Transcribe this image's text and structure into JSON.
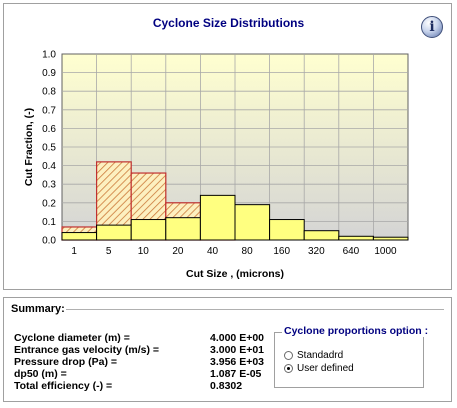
{
  "chart_data": {
    "type": "bar",
    "title": "Cyclone Size Distributions",
    "xlabel": "Cut Size , (microns)",
    "ylabel": "Cut Fraction,  (-)",
    "ylim": [
      0,
      1.0
    ],
    "yticks": [
      "0.0",
      "0.1",
      "0.2",
      "0.3",
      "0.4",
      "0.5",
      "0.6",
      "0.7",
      "0.8",
      "0.9",
      "1.0"
    ],
    "x_tick_labels": [
      "1",
      "5",
      "10",
      "20",
      "40",
      "80",
      "160",
      "320",
      "640",
      "1000"
    ],
    "grid": true,
    "legend": "none",
    "series": [
      {
        "style": "hatched",
        "bins": [
          [
            1,
            5
          ],
          [
            5,
            10
          ],
          [
            10,
            20
          ],
          [
            20,
            40
          ],
          [
            40,
            80
          ]
        ],
        "values": [
          0.07,
          0.42,
          0.36,
          0.2,
          0.03
        ]
      },
      {
        "style": "solid",
        "bins": [
          [
            1,
            5
          ],
          [
            5,
            10
          ],
          [
            10,
            20
          ],
          [
            20,
            40
          ],
          [
            40,
            80
          ],
          [
            80,
            160
          ],
          [
            160,
            320
          ],
          [
            320,
            640
          ],
          [
            640,
            1000
          ],
          [
            1000,
            1400
          ]
        ],
        "values": [
          0.04,
          0.08,
          0.11,
          0.12,
          0.24,
          0.19,
          0.11,
          0.05,
          0.02,
          0.015
        ]
      }
    ]
  },
  "colors": {
    "plot_top": "#ffffd0",
    "plot_bottom": "#d4d4d4",
    "bar_fill": "#ffff80",
    "hatch_stroke": "#cc7a3a",
    "hatch_border": "#c03030",
    "title_color": "#000080"
  },
  "info_icon": "info-icon",
  "summary": {
    "title": "Summary:",
    "rows": [
      {
        "label": "Cyclone diameter (m) =",
        "value": "4.000 E+00"
      },
      {
        "label": "Entrance gas velocity  (m/s) =",
        "value": "3.000 E+01"
      },
      {
        "label": "Pressure drop (Pa) =",
        "value": "3.956 E+03"
      },
      {
        "label": "dp50 (m) =",
        "value": "1.087 E-05"
      },
      {
        "label": "Total efficiency (-) =",
        "value": "0.8302"
      }
    ]
  },
  "proportions": {
    "title": "Cyclone proportions option :",
    "options": [
      {
        "label": "Standadrd",
        "checked": false
      },
      {
        "label": "User defined",
        "checked": true
      }
    ]
  }
}
